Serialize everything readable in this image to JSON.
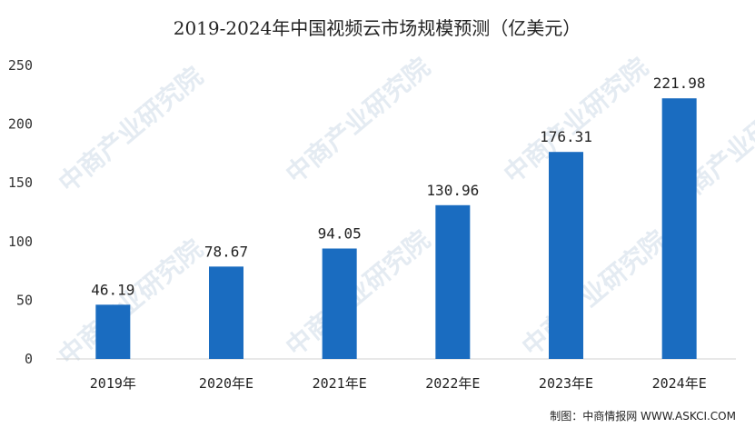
{
  "chart_data": {
    "type": "bar",
    "title": "2019-2024年中国视频云市场规模预测（亿美元）",
    "categories": [
      "2019年",
      "2020年E",
      "2021年E",
      "2022年E",
      "2023年E",
      "2024年E"
    ],
    "values": [
      46.19,
      78.67,
      94.05,
      130.96,
      176.31,
      221.98
    ],
    "data_labels": [
      "46.19",
      "78.67",
      "94.05",
      "130.96",
      "176.31",
      "221.98"
    ],
    "ylim": [
      0,
      250
    ],
    "yticks": [
      0,
      50,
      100,
      150,
      200,
      250
    ],
    "grid": false,
    "legend": "none",
    "bar_color": "#1a6cc0"
  },
  "source": "制图：中商情报网 WWW.ASKCI.COM",
  "watermark": "中商产业研究院"
}
